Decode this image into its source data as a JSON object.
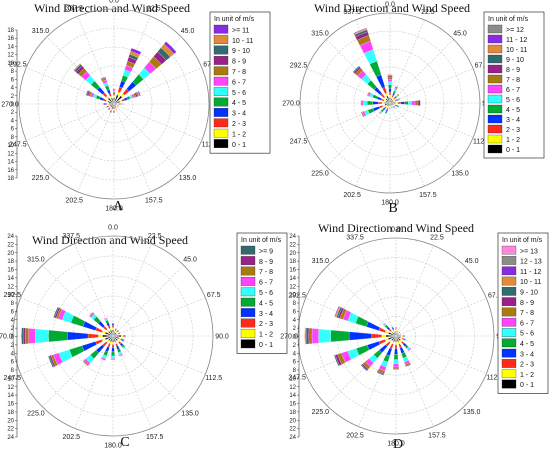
{
  "chart_data": [
    {
      "panel_label": "A",
      "type": "polar-bar",
      "title": "Wind Direction and Wind Speed",
      "legend_title": "In unit of m/s",
      "bins": [
        "0 - 1",
        "1 - 2",
        "2 - 3",
        "3 - 4",
        "4 - 5",
        "5 - 6",
        "6 - 7",
        "7 - 8",
        "8 - 9",
        "9 - 10",
        "10 - 11",
        ">= 11"
      ],
      "colors": [
        "#000000",
        "#ffff00",
        "#ff2a1a",
        "#0033ff",
        "#00aa33",
        "#33ffff",
        "#ff44ff",
        "#a87a10",
        "#992288",
        "#336b70",
        "#e08a3a",
        "#8a2be2"
      ],
      "angle_labels": [
        "0.0",
        "22.5",
        "45.0",
        "67.5",
        "90.0",
        "112.5",
        "135.0",
        "157.5",
        "180.0",
        "202.5",
        "225.0",
        "247.5",
        "270.0",
        "292.5",
        "315.0",
        "337.5"
      ],
      "radial_ticks": [
        0,
        2,
        4,
        6,
        8,
        10,
        12,
        14,
        16,
        18
      ],
      "rmax": 18,
      "directions": [
        0,
        22.5,
        45,
        67.5,
        90,
        112.5,
        135,
        157.5,
        180,
        202.5,
        225,
        247.5,
        270,
        292.5,
        315,
        337.5
      ],
      "sectors": [
        [
          1.2,
          0.4,
          0.3,
          0.2,
          0.2,
          0.2,
          0.2,
          0.2,
          0,
          0,
          0,
          0
        ],
        [
          1.8,
          0.6,
          1.0,
          1.2,
          1.1,
          1.1,
          0.9,
          0.8,
          0.8,
          0.6,
          0.6,
          0.6
        ],
        [
          2.0,
          0.6,
          1.1,
          1.8,
          1.8,
          1.6,
          1.5,
          1.3,
          1.2,
          1.0,
          0.9,
          0.6
        ],
        [
          1.2,
          0.4,
          0.5,
          0.6,
          0.5,
          0.5,
          0.4,
          0.3,
          0.3,
          0.2,
          0.2,
          0.2
        ],
        [
          0.6,
          0.2,
          0.2,
          0.2,
          0.2,
          0.2,
          0.1,
          0.1,
          0,
          0,
          0,
          0
        ],
        [
          0.5,
          0.2,
          0.1,
          0.1,
          0.1,
          0,
          0,
          0,
          0,
          0,
          0,
          0
        ],
        [
          0.5,
          0.2,
          0.1,
          0.1,
          0,
          0,
          0,
          0,
          0,
          0,
          0,
          0
        ],
        [
          0.8,
          0.2,
          0.1,
          0.1,
          0,
          0,
          0,
          0,
          0,
          0,
          0,
          0
        ],
        [
          1.0,
          0.2,
          0.2,
          0.2,
          0.1,
          0,
          0,
          0,
          0,
          0,
          0,
          0
        ],
        [
          1.0,
          0.3,
          0.2,
          0.2,
          0.1,
          0,
          0,
          0,
          0,
          0,
          0,
          0
        ],
        [
          0.8,
          0.2,
          0.2,
          0.2,
          0.1,
          0,
          0,
          0,
          0,
          0,
          0,
          0
        ],
        [
          0.8,
          0.2,
          0.2,
          0.2,
          0.1,
          0,
          0,
          0,
          0,
          0,
          0,
          0
        ],
        [
          1.0,
          0.3,
          0.3,
          0.3,
          0.1,
          0,
          0,
          0,
          0,
          0,
          0,
          0
        ],
        [
          1.2,
          0.4,
          0.5,
          0.8,
          0.7,
          0.6,
          0.5,
          0.4,
          0.3,
          0.2,
          0,
          0
        ],
        [
          1.5,
          0.5,
          0.8,
          1.4,
          1.5,
          1.3,
          1.0,
          0.8,
          0.6,
          0.4,
          0.2,
          0
        ],
        [
          1.2,
          0.4,
          0.5,
          0.8,
          0.8,
          0.6,
          0.5,
          0.3,
          0.2,
          0.1,
          0,
          0
        ]
      ]
    },
    {
      "panel_label": "B",
      "type": "polar-bar",
      "title": "Wind Direction and Wind Speed",
      "legend_title": "In unit of m/s",
      "bins": [
        "0 - 1",
        "1 - 2",
        "2 - 3",
        "3 - 4",
        "4 - 5",
        "5 - 6",
        "6 - 7",
        "7 - 8",
        "8 - 9",
        "9 - 10",
        "10 - 11",
        "11 - 12",
        ">= 12"
      ],
      "colors": [
        "#000000",
        "#ffff00",
        "#ff2a1a",
        "#0033ff",
        "#00aa33",
        "#33ffff",
        "#ff44ff",
        "#a87a10",
        "#992288",
        "#336b70",
        "#e08a3a",
        "#8a2be2",
        "#8c8c8c"
      ],
      "angle_labels": [
        "0.0",
        "22.5",
        "45.0",
        "67.5",
        "90.0",
        "112.5",
        "135.0",
        "157.5",
        "180.0",
        "202.5",
        "225.0",
        "247.5",
        "270.0",
        "292.5",
        "315.0",
        "337.5"
      ],
      "radial_ticks": [],
      "rmax": 24,
      "directions": [
        0,
        22.5,
        45,
        67.5,
        90,
        112.5,
        135,
        157.5,
        180,
        202.5,
        225,
        247.5,
        270,
        292.5,
        315,
        337.5
      ],
      "sectors": [
        [
          1.5,
          0.6,
          0.8,
          1.0,
          1.0,
          0.8,
          0.6,
          0.5,
          0.4,
          0.2,
          0.2,
          0,
          0
        ],
        [
          1.2,
          0.5,
          0.5,
          0.6,
          0.6,
          0.5,
          0.3,
          0.2,
          0.2,
          0,
          0,
          0,
          0
        ],
        [
          1.0,
          0.4,
          0.4,
          0.4,
          0.3,
          0.3,
          0.2,
          0.2,
          0,
          0,
          0,
          0,
          0
        ],
        [
          1.0,
          0.4,
          0.4,
          0.4,
          0.3,
          0.2,
          0.2,
          0,
          0,
          0,
          0,
          0,
          0
        ],
        [
          1.5,
          0.6,
          0.8,
          1.0,
          1.0,
          0.8,
          1.0,
          0.8,
          0.6,
          0,
          0,
          0,
          0
        ],
        [
          1.0,
          0.4,
          0.4,
          0.4,
          0.3,
          0.2,
          0,
          0,
          0,
          0,
          0,
          0,
          0
        ],
        [
          0.8,
          0.3,
          0.3,
          0.2,
          0.2,
          0,
          0,
          0,
          0,
          0,
          0,
          0,
          0
        ],
        [
          0.8,
          0.3,
          0.2,
          0.2,
          0,
          0,
          0,
          0,
          0,
          0,
          0,
          0,
          0
        ],
        [
          0.8,
          0.3,
          0.2,
          0.2,
          0.1,
          0,
          0,
          0,
          0,
          0,
          0,
          0,
          0
        ],
        [
          1.0,
          0.4,
          0.5,
          0.6,
          0.4,
          0.2,
          0,
          0,
          0,
          0,
          0,
          0,
          0
        ],
        [
          1.0,
          0.4,
          0.5,
          0.7,
          0.6,
          0.4,
          0.2,
          0,
          0,
          0,
          0,
          0,
          0
        ],
        [
          1.5,
          0.6,
          1.0,
          1.6,
          1.5,
          1.0,
          0.6,
          0.3,
          0,
          0,
          0,
          0,
          0
        ],
        [
          1.5,
          0.6,
          1.0,
          1.5,
          1.5,
          1.0,
          0.5,
          0.2,
          0,
          0,
          0,
          0,
          0
        ],
        [
          1.2,
          0.5,
          0.8,
          1.2,
          1.2,
          0.8,
          0.5,
          0.2,
          0,
          0,
          0,
          0,
          0
        ],
        [
          1.5,
          0.6,
          1.2,
          2.2,
          2.4,
          2.0,
          1.4,
          0.8,
          0.5,
          0.3,
          0,
          0,
          0
        ],
        [
          2.0,
          0.8,
          1.6,
          3.5,
          3.8,
          3.2,
          2.4,
          1.6,
          1.0,
          0.6,
          0.3,
          0.2,
          0
        ]
      ]
    },
    {
      "panel_label": "C",
      "type": "polar-bar",
      "title": "Wind Direction and Wind Speed",
      "legend_title": "In unit of m/s",
      "bins": [
        "0 - 1",
        "1 - 2",
        "2 - 3",
        "3 - 4",
        "4 - 5",
        "5 - 6",
        "6 - 7",
        "7 - 8",
        "8 - 9",
        ">= 9"
      ],
      "colors": [
        "#000000",
        "#ffff00",
        "#ff2a1a",
        "#0033ff",
        "#00aa33",
        "#33ffff",
        "#ff44ff",
        "#a87a10",
        "#992288",
        "#336b70"
      ],
      "angle_labels": [
        "0.0",
        "22.5",
        "45.0",
        "67.5",
        "90.0",
        "112.5",
        "135.0",
        "157.5",
        "180.0",
        "202.5",
        "225.0",
        "247.5",
        "270.0",
        "292.5",
        "315.0",
        "337.5"
      ],
      "radial_ticks": [
        0,
        2,
        4,
        6,
        8,
        10,
        12,
        14,
        16,
        18,
        20,
        22,
        24
      ],
      "rmax": 24,
      "directions": [
        0,
        22.5,
        45,
        67.5,
        90,
        112.5,
        135,
        157.5,
        180,
        202.5,
        225,
        247.5,
        270,
        292.5,
        315,
        337.5
      ],
      "sectors": [
        [
          1.5,
          0.5,
          0.5,
          0.4,
          0.2,
          0,
          0,
          0,
          0,
          0
        ],
        [
          1.0,
          0.4,
          0.3,
          0.2,
          0,
          0,
          0,
          0,
          0,
          0
        ],
        [
          1.0,
          0.3,
          0.3,
          0.2,
          0,
          0,
          0,
          0,
          0,
          0
        ],
        [
          1.0,
          0.3,
          0.3,
          0.2,
          0,
          0,
          0,
          0,
          0,
          0
        ],
        [
          2.0,
          0.5,
          0.3,
          0.2,
          0,
          0,
          0,
          0,
          0,
          0
        ],
        [
          1.5,
          0.5,
          0.4,
          0.3,
          0.2,
          0,
          0,
          0,
          0,
          0
        ],
        [
          1.5,
          0.5,
          0.6,
          0.6,
          0.5,
          0.4,
          0,
          0,
          0,
          0
        ],
        [
          1.5,
          0.5,
          0.6,
          0.8,
          0.8,
          0.6,
          0.3,
          0,
          0,
          0
        ],
        [
          1.5,
          0.5,
          0.8,
          1.0,
          1.0,
          0.6,
          0.3,
          0,
          0,
          0
        ],
        [
          1.5,
          0.5,
          0.8,
          1.2,
          1.0,
          0.8,
          0.4,
          0,
          0,
          0
        ],
        [
          1.5,
          0.6,
          1.2,
          2.0,
          1.8,
          1.4,
          0.6,
          0.3,
          0,
          0
        ],
        [
          2.0,
          0.8,
          1.6,
          3.4,
          3.2,
          2.6,
          1.4,
          0.6,
          0.4,
          0.3
        ],
        [
          2.5,
          1.0,
          2.5,
          5.0,
          4.5,
          3.2,
          1.6,
          0.8,
          0.5,
          0.4
        ],
        [
          2.0,
          0.8,
          1.6,
          3.2,
          3.0,
          2.2,
          1.0,
          0.5,
          0.4,
          0.3
        ],
        [
          1.5,
          0.6,
          1.0,
          1.6,
          1.4,
          0.8,
          0.4,
          0.2,
          0,
          0
        ],
        [
          1.5,
          0.5,
          0.6,
          0.8,
          0.6,
          0.4,
          0.2,
          0,
          0,
          0
        ]
      ]
    },
    {
      "panel_label": "D",
      "type": "polar-bar",
      "title": "Wind Direction and Wind Speed",
      "legend_title": "In unit of m/s",
      "bins": [
        "0 - 1",
        "1 - 2",
        "2 - 3",
        "3 - 4",
        "4 - 5",
        "5 - 6",
        "6 - 7",
        "7 - 8",
        "8 - 9",
        "9 - 10",
        "10 - 11",
        "11 - 12",
        "12 - 13",
        ">= 13"
      ],
      "colors": [
        "#000000",
        "#ffff00",
        "#ff2a1a",
        "#0033ff",
        "#00aa33",
        "#33ffff",
        "#ff44ff",
        "#a87a10",
        "#992288",
        "#336b70",
        "#e08a3a",
        "#8a2be2",
        "#8c8c8c",
        "#ff88dd"
      ],
      "angle_labels": [
        "0.0",
        "22.5",
        "45.0",
        "67.5",
        "90.0",
        "112.5",
        "135.0",
        "157.5",
        "180.0",
        "202.5",
        "225.0",
        "247.5",
        "270.0",
        "292.5",
        "315.0",
        "337.5"
      ],
      "radial_ticks": [
        0,
        2,
        4,
        6,
        8,
        10,
        12,
        14,
        16,
        18,
        20,
        22,
        24
      ],
      "rmax": 24,
      "directions": [
        0,
        22.5,
        45,
        67.5,
        90,
        112.5,
        135,
        157.5,
        180,
        202.5,
        225,
        247.5,
        270,
        292.5,
        315,
        337.5
      ],
      "sectors": [
        [
          1.2,
          0.4,
          0.3,
          0.2,
          0,
          0,
          0,
          0,
          0,
          0,
          0,
          0,
          0,
          0
        ],
        [
          0.8,
          0.3,
          0.2,
          0,
          0,
          0,
          0,
          0,
          0,
          0,
          0,
          0,
          0,
          0
        ],
        [
          0.8,
          0.3,
          0.2,
          0,
          0,
          0,
          0,
          0,
          0,
          0,
          0,
          0,
          0,
          0
        ],
        [
          0.8,
          0.3,
          0.2,
          0,
          0,
          0,
          0,
          0,
          0,
          0,
          0,
          0,
          0,
          0
        ],
        [
          1.2,
          0.4,
          0.3,
          0.2,
          0,
          0,
          0,
          0,
          0,
          0,
          0,
          0,
          0,
          0
        ],
        [
          1.2,
          0.4,
          0.4,
          0.3,
          0.2,
          0,
          0,
          0,
          0,
          0,
          0,
          0,
          0,
          0
        ],
        [
          1.5,
          0.5,
          0.6,
          0.8,
          0.6,
          0.5,
          0.3,
          0,
          0,
          0,
          0,
          0,
          0,
          0
        ],
        [
          1.5,
          0.6,
          1.0,
          1.4,
          1.2,
          1.0,
          0.6,
          0.4,
          0.2,
          0,
          0,
          0,
          0,
          0
        ],
        [
          1.5,
          0.6,
          1.0,
          1.4,
          1.3,
          1.0,
          0.8,
          0.4,
          0.2,
          0,
          0,
          0,
          0,
          0
        ],
        [
          1.5,
          0.6,
          1.2,
          1.8,
          1.6,
          1.3,
          1.0,
          0.6,
          0.3,
          0.2,
          0,
          0,
          0,
          0
        ],
        [
          1.5,
          0.6,
          1.2,
          2.0,
          1.8,
          1.5,
          1.2,
          0.8,
          0.4,
          0.2,
          0,
          0,
          0,
          0
        ],
        [
          2.0,
          0.8,
          1.6,
          3.0,
          2.8,
          2.2,
          1.6,
          1.0,
          0.6,
          0.3,
          0,
          0,
          0,
          0
        ],
        [
          2.5,
          1.0,
          2.5,
          5.5,
          4.5,
          3.0,
          1.6,
          0.8,
          0.5,
          0.3,
          0.2,
          0,
          0,
          0
        ],
        [
          2.0,
          0.8,
          1.6,
          3.2,
          2.8,
          2.0,
          1.2,
          0.8,
          0.5,
          0.4,
          0.3,
          0.2,
          0,
          0
        ],
        [
          1.2,
          0.4,
          0.6,
          0.8,
          0.6,
          0.4,
          0.2,
          0,
          0,
          0,
          0,
          0,
          0,
          0
        ],
        [
          1.0,
          0.4,
          0.4,
          0.4,
          0.2,
          0,
          0,
          0,
          0,
          0,
          0,
          0,
          0,
          0
        ]
      ]
    }
  ]
}
